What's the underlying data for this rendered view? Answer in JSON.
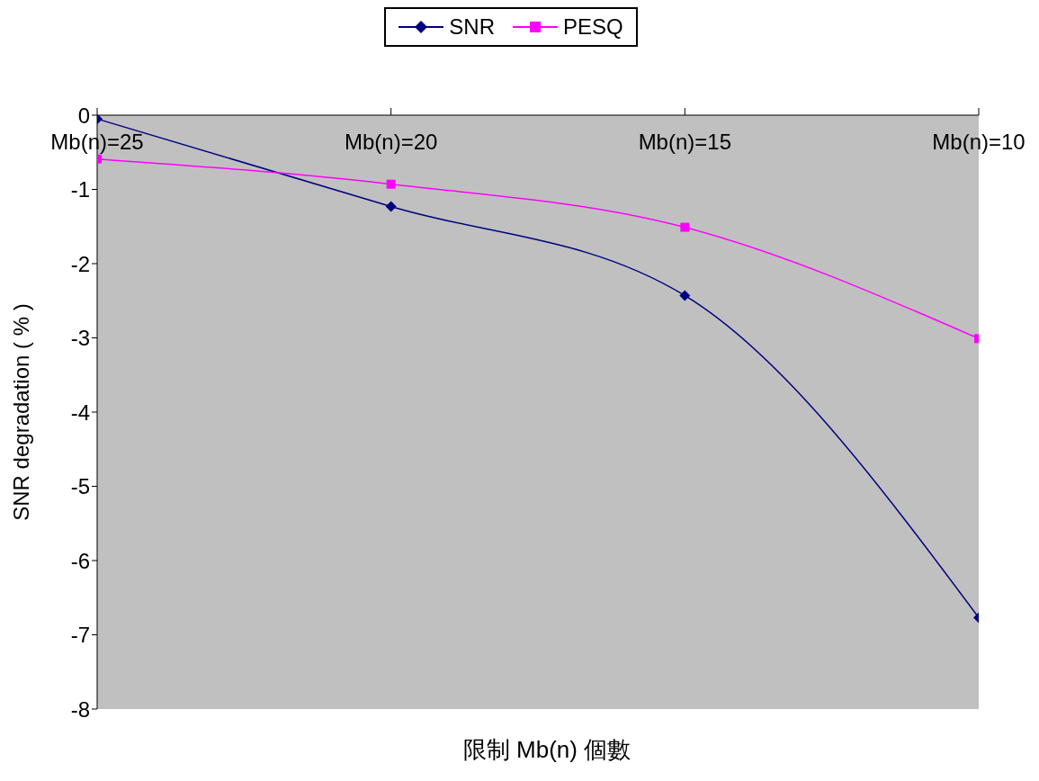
{
  "chart_data": {
    "type": "line",
    "xlabel": "限制 Mb(n) 個數",
    "ylabel": "SNR degradation ( % )",
    "categories": [
      "Mb(n)=25",
      "Mb(n)=20",
      "Mb(n)=15",
      "Mb(n)=10"
    ],
    "series": [
      {
        "name": "SNR",
        "color": "#000080",
        "marker": "diamond",
        "values": [
          -0.05,
          -1.23,
          -2.43,
          -6.77
        ]
      },
      {
        "name": "PESQ",
        "color": "#ff00ff",
        "marker": "square",
        "values": [
          -0.59,
          -0.93,
          -1.51,
          -3.01
        ]
      }
    ],
    "ylim": [
      -8,
      0
    ],
    "yticks": [
      0,
      -1,
      -2,
      -3,
      -4,
      -5,
      -6,
      -7,
      -8
    ],
    "grid": false,
    "legend": "top",
    "line_style": "solid"
  }
}
